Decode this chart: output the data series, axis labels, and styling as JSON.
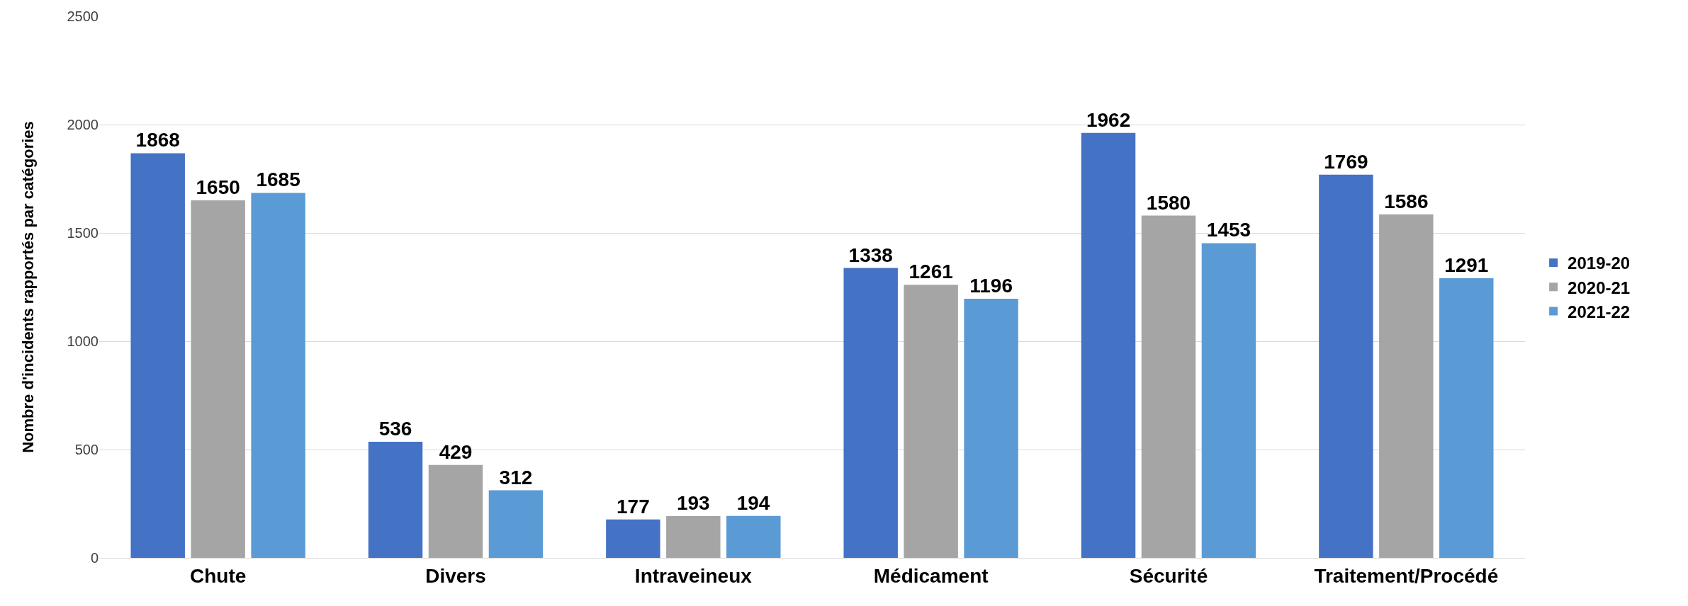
{
  "chart_data": {
    "type": "bar",
    "ylabel": "Nombre d'incidents rapportés par catégories",
    "categories": [
      "Chute",
      "Divers",
      "Intraveineux",
      "Médicament",
      "Sécurité",
      "Traitement/Procédé"
    ],
    "series": [
      {
        "name": "2019-20",
        "color": "#4472c4",
        "values": [
          1868,
          536,
          177,
          1338,
          1962,
          1769
        ]
      },
      {
        "name": "2020-21",
        "color": "#a5a5a5",
        "values": [
          1650,
          429,
          193,
          1261,
          1580,
          1586
        ]
      },
      {
        "name": "2021-22",
        "color": "#5b9bd5",
        "values": [
          1685,
          312,
          194,
          1196,
          1453,
          1291
        ]
      }
    ],
    "ylim": [
      0,
      2500
    ],
    "yticks": [
      0,
      500,
      1000,
      1500,
      2000,
      2500
    ],
    "grid": "y",
    "legend": "right",
    "data_labels": true
  }
}
